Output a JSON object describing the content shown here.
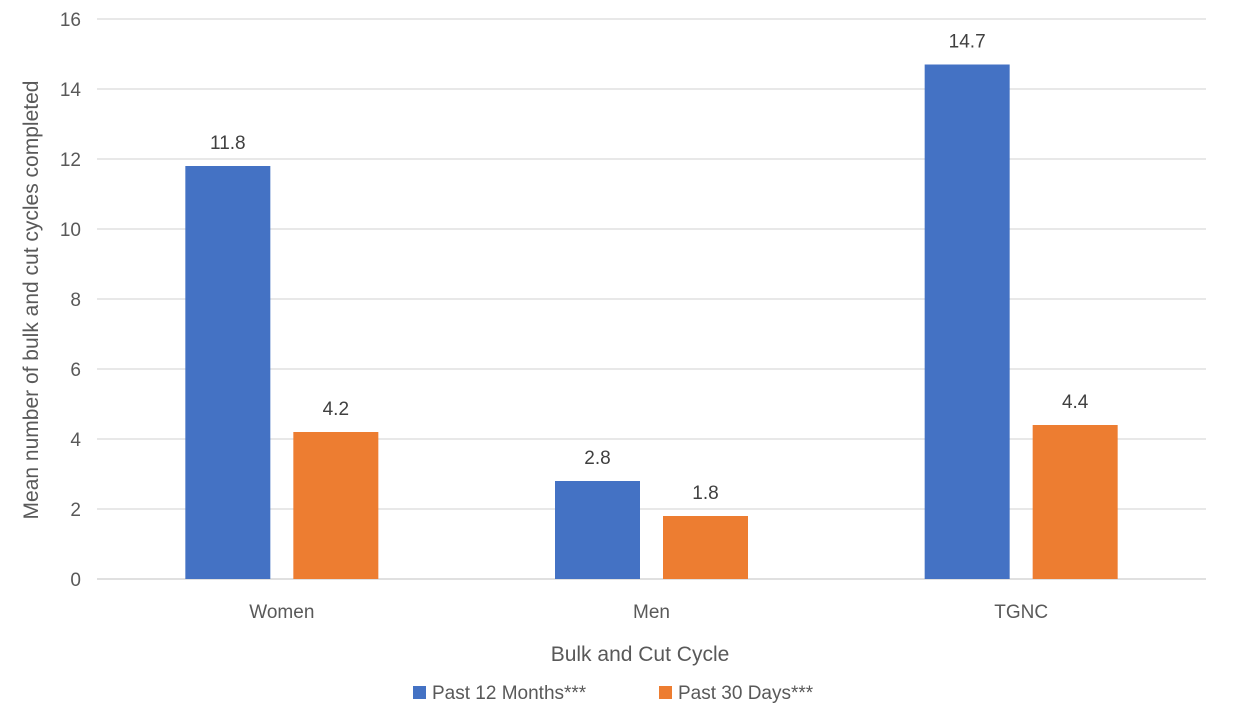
{
  "chart_data": {
    "type": "bar",
    "title": "",
    "xlabel": "Bulk and Cut Cycle",
    "ylabel": "Mean number of bulk and cut cycles completed",
    "categories": [
      "Women",
      "Men",
      "TGNC"
    ],
    "series": [
      {
        "name": "Past 12 Months***",
        "values": [
          11.8,
          2.8,
          14.7
        ],
        "color": "#4472C4"
      },
      {
        "name": "Past 30 Days***",
        "values": [
          4.2,
          1.8,
          4.4
        ],
        "color": "#ED7D31"
      }
    ],
    "ylim": [
      0,
      16
    ],
    "yticks": [
      0,
      2,
      4,
      6,
      8,
      10,
      12,
      14,
      16
    ],
    "grid": true,
    "legend_position": "bottom",
    "data_labels": true
  }
}
